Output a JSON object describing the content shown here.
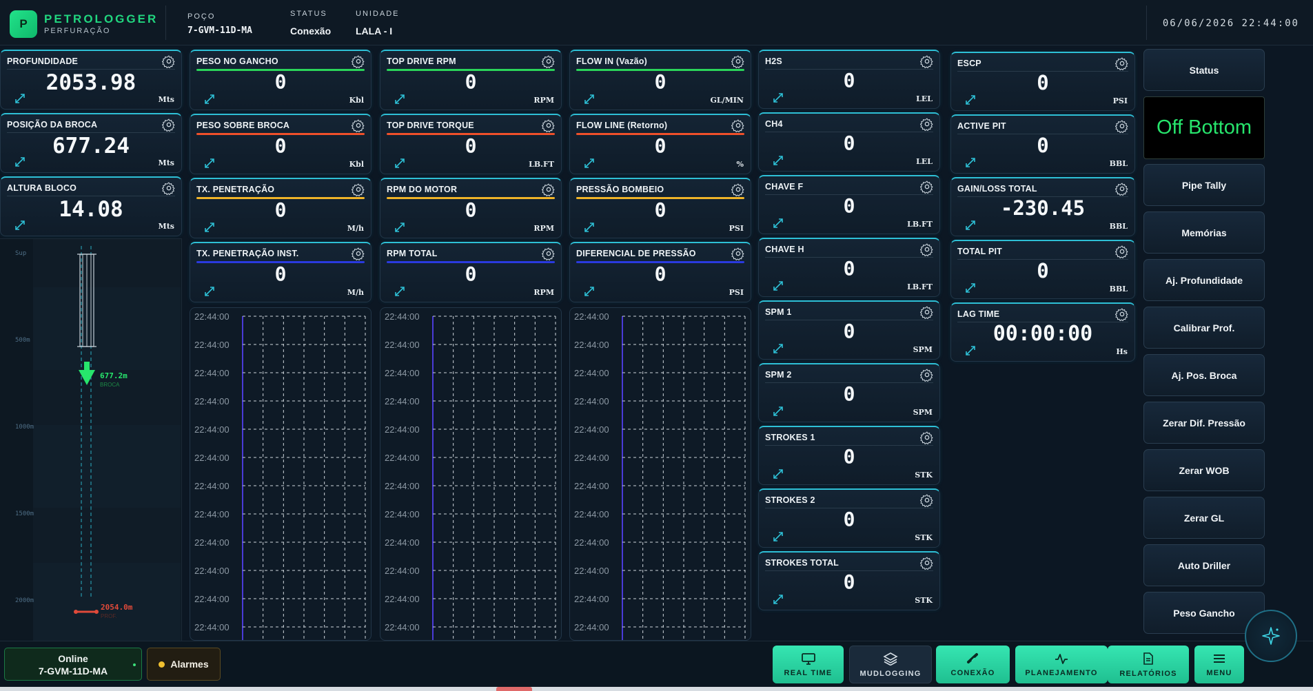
{
  "header": {
    "logo_letter": "P",
    "brand": "PETROLOGGER",
    "brand_sub": "PERFURAÇÃO",
    "well_label": "POÇO",
    "well_value": "7-GVM-11D-MA",
    "status_label": "STATUS",
    "status_value": "Conexão",
    "unit_label": "UNIDADE",
    "unit_value": "LALA - I",
    "datetime": "06/06/2026 22:44:00"
  },
  "depth_cards": [
    {
      "title": "PROFUNDIDADE",
      "value": "2053.98",
      "unit": "Mts"
    },
    {
      "title": "POSIÇÃO DA BROCA",
      "value": "677.24",
      "unit": "Mts"
    },
    {
      "title": "ALTURA BLOCO",
      "value": "14.08",
      "unit": "Mts"
    }
  ],
  "columns": [
    {
      "cards": [
        {
          "title": "PESO NO GANCHO",
          "value": "0",
          "unit": "Kbl",
          "bar_color": "#2bd65a"
        },
        {
          "title": "PESO SOBRE BROCA",
          "value": "0",
          "unit": "Kbl",
          "bar_color": "#f0502a"
        },
        {
          "title": "TX. PENETRAÇÃO",
          "value": "0",
          "unit": "M/h",
          "bar_color": "#f0b428"
        },
        {
          "title": "TX. PENETRAÇÃO INST.",
          "value": "0",
          "unit": "M/h",
          "bar_color": "#2a3adf"
        }
      ]
    },
    {
      "cards": [
        {
          "title": "TOP DRIVE RPM",
          "value": "0",
          "unit": "RPM",
          "bar_color": "#2bd65a"
        },
        {
          "title": "TOP DRIVE TORQUE",
          "value": "0",
          "unit": "LB.FT",
          "bar_color": "#f0502a"
        },
        {
          "title": "RPM DO MOTOR",
          "value": "0",
          "unit": "RPM",
          "bar_color": "#f0b428"
        },
        {
          "title": "RPM TOTAL",
          "value": "0",
          "unit": "RPM",
          "bar_color": "#2a3adf"
        }
      ]
    },
    {
      "cards": [
        {
          "title": "FLOW IN (Vazão)",
          "value": "0",
          "unit": "GL/MIN",
          "bar_color": "#2bd65a"
        },
        {
          "title": "FLOW LINE (Retorno)",
          "value": "0",
          "unit": "%",
          "bar_color": "#f0502a"
        },
        {
          "title": "PRESSÃO BOMBEIO",
          "value": "0",
          "unit": "PSI",
          "bar_color": "#f0b428"
        },
        {
          "title": "DIFERENCIAL DE PRESSÃO",
          "value": "0",
          "unit": "PSI",
          "bar_color": "#2a3adf"
        }
      ]
    }
  ],
  "chart_times": [
    "22:44:00",
    "22:44:00",
    "22:44:00",
    "22:44:00",
    "22:44:00",
    "22:44:00",
    "22:44:00",
    "22:44:00",
    "22:44:00",
    "22:44:00",
    "22:44:00",
    "22:44:00"
  ],
  "gas_cards": [
    {
      "title": "H2S",
      "value": "0",
      "unit": "LEL"
    },
    {
      "title": "CH4",
      "value": "0",
      "unit": "LEL"
    },
    {
      "title": "CHAVE F",
      "value": "0",
      "unit": "LB.FT"
    },
    {
      "title": "CHAVE H",
      "value": "0",
      "unit": "LB.FT"
    },
    {
      "title": "SPM 1",
      "value": "0",
      "unit": "SPM"
    },
    {
      "title": "SPM 2",
      "value": "0",
      "unit": "SPM"
    },
    {
      "title": "STROKES 1",
      "value": "0",
      "unit": "STK"
    },
    {
      "title": "STROKES 2",
      "value": "0",
      "unit": "STK"
    },
    {
      "title": "STROKES TOTAL",
      "value": "0",
      "unit": "STK"
    }
  ],
  "pit_cards": [
    {
      "title": "ESCP",
      "value": "0",
      "unit": "PSI"
    },
    {
      "title": "ACTIVE PIT",
      "value": "0",
      "unit": "BBL"
    },
    {
      "title": "GAIN/LOSS TOTAL",
      "value": "-230.45",
      "unit": "BBL"
    },
    {
      "title": "TOTAL PIT",
      "value": "0",
      "unit": "BBL"
    },
    {
      "title": "LAG TIME",
      "value": "00:00:00",
      "unit": "Hs"
    }
  ],
  "well": {
    "scale": [
      "Sup",
      "500m",
      "1000m",
      "1500m",
      "2000m"
    ],
    "bit_label": "677.2m",
    "bit_sub": "BROCA",
    "bottom_label": "2054.0m",
    "bottom_sub": "PROF."
  },
  "right_panel": {
    "status_button": "Status",
    "status_display": "Off Bottom",
    "buttons": [
      "Pipe Tally",
      "Memórias",
      "Aj. Profundidade",
      "Calibrar Prof.",
      "Aj. Pos. Broca",
      "Zerar Dif. Pressão",
      "Zerar WOB",
      "Zerar GL",
      "Auto Driller",
      "Peso Gancho"
    ]
  },
  "bottom_bar": {
    "online_label": "Online",
    "online_well": "7-GVM-11D-MA",
    "alarms_label": "Alarmes",
    "nav": [
      {
        "label": "REAL TIME",
        "icon": "monitor-icon",
        "active": true
      },
      {
        "label": "MUDLOGGING",
        "icon": "layers-icon",
        "active": false
      },
      {
        "label": "CONEXÃO",
        "icon": "pipe-icon",
        "active": true
      },
      {
        "label": "PLANEJAMENTO",
        "icon": "activity-icon",
        "active": true
      },
      {
        "label": "RELATÓRIOS",
        "icon": "document-icon",
        "active": true
      },
      {
        "label": "MENU",
        "icon": "menu-icon",
        "active": true
      }
    ]
  },
  "colors": {
    "accent": "#2ec0d6",
    "brand_green": "#21d67f",
    "status_green": "#27e56c",
    "nav_active": "#36e6b2"
  }
}
